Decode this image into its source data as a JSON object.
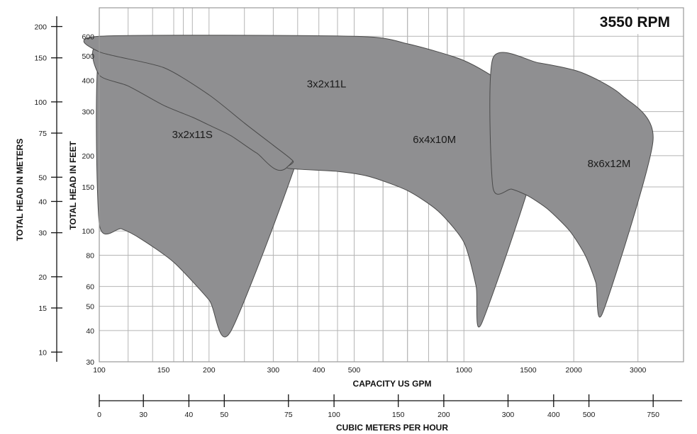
{
  "chart_data": {
    "type": "area",
    "title": "3550 RPM",
    "xlabel": "CAPACITY US GPM",
    "ylabel": "TOTAL HEAD IN FEET",
    "x_scale": "log",
    "y_scale": "log",
    "xlim": [
      100,
      4000
    ],
    "ylim": [
      30,
      780
    ],
    "grid": true,
    "x_ticks": [
      100,
      150,
      200,
      300,
      400,
      500,
      1000,
      1500,
      2000,
      3000
    ],
    "y_ticks": [
      30,
      40,
      50,
      60,
      80,
      100,
      150,
      200,
      300,
      400,
      500,
      600
    ],
    "secondary_y": {
      "label": "TOTAL HEAD IN METERS",
      "ticks": [
        10,
        15,
        20,
        30,
        40,
        50,
        75,
        100,
        150,
        200
      ]
    },
    "secondary_x": {
      "label": "CUBIC METERS PER HOUR",
      "ticks": [
        0,
        30,
        40,
        50,
        75,
        100,
        150,
        200,
        300,
        400,
        500,
        750
      ]
    },
    "series": [
      {
        "name": "3x2x11S",
        "label_at": [
          180,
          235
        ],
        "boundary": [
          [
            100,
            520
          ],
          [
            130,
            530
          ],
          [
            200,
            510
          ],
          [
            300,
            430
          ],
          [
            385,
            310
          ],
          [
            230,
            40
          ],
          [
            200,
            53
          ],
          [
            160,
            75
          ],
          [
            130,
            93
          ],
          [
            115,
            102
          ],
          [
            100,
            107
          ]
        ]
      },
      {
        "name": "3x2x11L",
        "label_at": [
          420,
          375
        ],
        "boundary": [
          [
            100,
            560
          ],
          [
            200,
            565
          ],
          [
            300,
            540
          ],
          [
            400,
            480
          ],
          [
            475,
            390
          ],
          [
            325,
            178
          ],
          [
            270,
            205
          ],
          [
            230,
            240
          ],
          [
            200,
            265
          ],
          [
            180,
            285
          ],
          [
            150,
            318
          ],
          [
            120,
            380
          ],
          [
            100,
            420
          ]
        ]
      },
      {
        "name": "6x4x10M",
        "label_at": [
          830,
          225
        ],
        "boundary": [
          [
            100,
            600
          ],
          [
            500,
            600
          ],
          [
            700,
            560
          ],
          [
            1000,
            480
          ],
          [
            1300,
            380
          ],
          [
            1650,
            250
          ],
          [
            1120,
            43
          ],
          [
            1080,
            60
          ],
          [
            1000,
            90
          ],
          [
            850,
            120
          ],
          [
            700,
            145
          ],
          [
            550,
            165
          ],
          [
            450,
            173
          ],
          [
            330,
            178
          ],
          [
            340,
            190
          ],
          [
            300,
            220
          ],
          [
            250,
            270
          ],
          [
            200,
            350
          ],
          [
            150,
            450
          ],
          [
            100,
            520
          ]
        ]
      },
      {
        "name": "8x6x12M",
        "label_at": [
          2500,
          180
        ],
        "boundary": [
          [
            1200,
            490
          ],
          [
            1600,
            470
          ],
          [
            2100,
            430
          ],
          [
            2700,
            350
          ],
          [
            3300,
            230
          ],
          [
            2400,
            47
          ],
          [
            2300,
            62
          ],
          [
            2150,
            80
          ],
          [
            1950,
            100
          ],
          [
            1700,
            122
          ],
          [
            1500,
            138
          ],
          [
            1350,
            147
          ],
          [
            1200,
            150
          ]
        ]
      }
    ]
  }
}
